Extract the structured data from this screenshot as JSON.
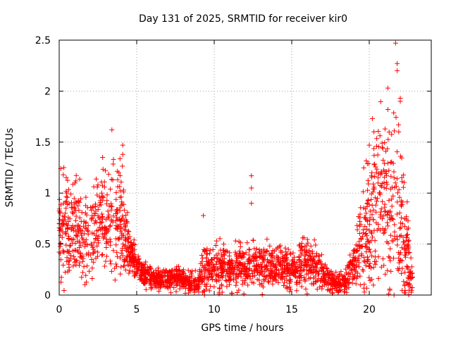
{
  "chart_data": {
    "type": "scatter",
    "title": "Day 131 of 2025, SRMTID for receiver kir0",
    "xlabel": "GPS time / hours",
    "ylabel": "SRMTID / TECUs",
    "xlim": [
      0,
      24
    ],
    "ylim": [
      0,
      2.5
    ],
    "x_ticks": [
      0,
      5,
      10,
      15,
      20
    ],
    "x_tick_labels": [
      "0",
      "5",
      "10",
      "15",
      "20"
    ],
    "y_ticks": [
      0,
      0.5,
      1,
      1.5,
      2,
      2.5
    ],
    "y_tick_labels": [
      "0",
      "0.5",
      "1",
      "1.5",
      "2",
      "2.5"
    ],
    "grid": true,
    "marker": "+",
    "series": [
      {
        "name": "SRMTID",
        "color": "#ff0000",
        "profile_x": [
          0,
          0.5,
          1,
          1.5,
          2,
          2.5,
          3,
          3.5,
          4,
          4.3,
          4.6,
          5,
          5.5,
          6,
          6.5,
          7,
          7.5,
          8,
          8.5,
          9,
          9.3,
          9.6,
          10,
          10.5,
          11,
          11.5,
          12,
          12.5,
          13,
          13.5,
          14,
          14.5,
          15,
          15.5,
          16,
          16.5,
          17,
          17.5,
          18,
          18.5,
          19,
          19.5,
          20,
          20.5,
          21,
          21.5,
          22,
          22.5,
          22.8
        ],
        "profile_y": [
          0.55,
          0.65,
          0.62,
          0.55,
          0.6,
          0.7,
          0.75,
          0.7,
          0.72,
          0.6,
          0.4,
          0.3,
          0.2,
          0.16,
          0.14,
          0.16,
          0.17,
          0.14,
          0.12,
          0.13,
          0.25,
          0.28,
          0.25,
          0.3,
          0.25,
          0.28,
          0.28,
          0.3,
          0.27,
          0.3,
          0.25,
          0.3,
          0.25,
          0.3,
          0.35,
          0.28,
          0.2,
          0.15,
          0.12,
          0.13,
          0.3,
          0.55,
          0.75,
          0.85,
          0.95,
          0.9,
          0.75,
          0.35,
          0.1
        ],
        "profile_spread": [
          0.25,
          0.3,
          0.28,
          0.25,
          0.25,
          0.3,
          0.35,
          0.3,
          0.3,
          0.28,
          0.12,
          0.1,
          0.08,
          0.06,
          0.06,
          0.07,
          0.07,
          0.06,
          0.06,
          0.07,
          0.15,
          0.12,
          0.12,
          0.15,
          0.12,
          0.13,
          0.13,
          0.13,
          0.12,
          0.13,
          0.12,
          0.13,
          0.12,
          0.14,
          0.15,
          0.12,
          0.08,
          0.07,
          0.06,
          0.07,
          0.15,
          0.3,
          0.4,
          0.45,
          0.5,
          0.5,
          0.45,
          0.25,
          0.08
        ],
        "highlights": [
          {
            "x": 3.4,
            "y": 1.62
          },
          {
            "x": 0.1,
            "y": 1.24
          },
          {
            "x": 0.3,
            "y": 1.25
          },
          {
            "x": 2.8,
            "y": 1.35
          },
          {
            "x": 4.1,
            "y": 1.47
          },
          {
            "x": 4.1,
            "y": 1.38
          },
          {
            "x": 3.5,
            "y": 1.33
          },
          {
            "x": 9.3,
            "y": 0.78
          },
          {
            "x": 12.4,
            "y": 1.17
          },
          {
            "x": 12.4,
            "y": 1.05
          },
          {
            "x": 12.4,
            "y": 0.9
          },
          {
            "x": 21.2,
            "y": 2.03
          },
          {
            "x": 21.2,
            "y": 1.82
          },
          {
            "x": 21.7,
            "y": 2.47
          },
          {
            "x": 21.8,
            "y": 2.27
          },
          {
            "x": 21.8,
            "y": 2.2
          },
          {
            "x": 22.0,
            "y": 1.93
          },
          {
            "x": 22.0,
            "y": 1.9
          },
          {
            "x": 20.2,
            "y": 1.73
          },
          {
            "x": 20.3,
            "y": 1.6
          },
          {
            "x": 20.0,
            "y": 1.47
          },
          {
            "x": 21.9,
            "y": 1.6
          },
          {
            "x": 21.6,
            "y": 0.0
          }
        ],
        "point_count": 2400,
        "seed": 131
      }
    ]
  }
}
